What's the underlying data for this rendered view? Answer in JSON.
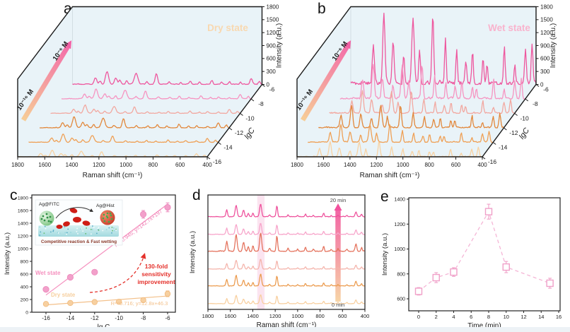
{
  "panels": {
    "a": {
      "letter": "a"
    },
    "b": {
      "letter": "b"
    },
    "c": {
      "letter": "c"
    },
    "d": {
      "letter": "d"
    },
    "e": {
      "letter": "e"
    }
  },
  "raman_peak_sets": {
    "dry": [
      [
        1630,
        0.5,
        14
      ],
      [
        1595,
        0.25,
        10
      ],
      [
        1545,
        1.0,
        16
      ],
      [
        1480,
        0.5,
        14
      ],
      [
        1450,
        0.3,
        10
      ],
      [
        1400,
        0.3,
        10
      ],
      [
        1330,
        0.85,
        18
      ],
      [
        1250,
        0.2,
        12
      ],
      [
        1180,
        0.8,
        13
      ],
      [
        1085,
        0.2,
        10
      ],
      [
        1000,
        0.15,
        9
      ],
      [
        930,
        0.25,
        10
      ],
      [
        860,
        0.15,
        9
      ],
      [
        770,
        0.3,
        10
      ],
      [
        700,
        0.15,
        9
      ],
      [
        640,
        0.2,
        9
      ],
      [
        560,
        0.15,
        9
      ],
      [
        480,
        0.45,
        12
      ],
      [
        420,
        0.25,
        9
      ]
    ],
    "wet": [
      [
        1630,
        0.55,
        11
      ],
      [
        1550,
        1.0,
        12
      ],
      [
        1480,
        0.6,
        11
      ],
      [
        1400,
        0.4,
        9
      ],
      [
        1330,
        0.95,
        13
      ],
      [
        1280,
        0.5,
        9
      ],
      [
        1180,
        1.0,
        10
      ],
      [
        1085,
        0.65,
        9
      ],
      [
        1000,
        0.5,
        8
      ],
      [
        930,
        0.35,
        9
      ],
      [
        880,
        0.45,
        8
      ],
      [
        800,
        0.35,
        8
      ],
      [
        770,
        0.3,
        8
      ],
      [
        640,
        0.55,
        8
      ],
      [
        560,
        0.25,
        8
      ],
      [
        480,
        0.5,
        9
      ],
      [
        430,
        0.6,
        9
      ]
    ],
    "kinetic": [
      [
        1632,
        0.55,
        10
      ],
      [
        1548,
        0.9,
        12
      ],
      [
        1482,
        0.5,
        11
      ],
      [
        1440,
        0.25,
        9
      ],
      [
        1398,
        0.3,
        8
      ],
      [
        1330,
        1.0,
        12
      ],
      [
        1250,
        0.15,
        9
      ],
      [
        1185,
        0.85,
        9
      ],
      [
        1085,
        0.15,
        8
      ],
      [
        1000,
        0.12,
        8
      ],
      [
        930,
        0.22,
        8
      ],
      [
        860,
        0.12,
        8
      ],
      [
        768,
        0.28,
        8
      ],
      [
        700,
        0.1,
        8
      ],
      [
        640,
        0.15,
        7
      ],
      [
        560,
        0.12,
        8
      ],
      [
        480,
        0.4,
        10
      ],
      [
        430,
        0.2,
        8
      ]
    ]
  },
  "chart_data": [
    {
      "id": "a",
      "type": "line",
      "variant": "3d-waterfall-raman",
      "title": "Dry state",
      "title_color": "#f8d8b0",
      "xlabel": "Raman shift (cm⁻¹)",
      "x_range": [
        1800,
        400
      ],
      "x_ticks": [
        1800,
        1600,
        1400,
        1200,
        1000,
        800,
        600,
        400
      ],
      "ylabel": "Intensity (a.u.)",
      "y_range": [
        0,
        1800
      ],
      "y_ticks": [
        0,
        300,
        600,
        900,
        1200,
        1500,
        1800
      ],
      "zlabel": "lgC",
      "z_ticks": [
        -16,
        -14,
        -12,
        -10,
        -8,
        -6
      ],
      "conc_arrow": {
        "from": "10⁻¹⁶ M",
        "to": "10⁻⁶ M"
      },
      "peak_set": "dry",
      "series": [
        {
          "lgC": -16,
          "color": "#f8d2a2",
          "peak_intensity": 150
        },
        {
          "lgC": -14,
          "color": "#efa055",
          "peak_intensity": 190
        },
        {
          "lgC": -12,
          "color": "#e2883c",
          "peak_intensity": 260
        },
        {
          "lgC": -10,
          "color": "#f2a8a0",
          "peak_intensity": 190
        },
        {
          "lgC": -8,
          "color": "#f694c1",
          "peak_intensity": 230
        },
        {
          "lgC": -6,
          "color": "#ee579e",
          "peak_intensity": 300
        }
      ]
    },
    {
      "id": "b",
      "type": "line",
      "variant": "3d-waterfall-raman",
      "title": "Wet state",
      "title_color": "#f9b3cd",
      "xlabel": "Raman shift (cm⁻¹)",
      "x_range": [
        1800,
        400
      ],
      "x_ticks": [
        1800,
        1600,
        1400,
        1200,
        1000,
        800,
        600,
        400
      ],
      "ylabel": "Intensity (a.u.)",
      "y_range": [
        0,
        1800
      ],
      "y_ticks": [
        0,
        300,
        600,
        900,
        1200,
        1500,
        1800
      ],
      "zlabel": "lgC",
      "z_ticks": [
        -16,
        -14,
        -12,
        -10,
        -8,
        -6
      ],
      "conc_arrow": {
        "from": "10⁻¹⁶ M",
        "to": "10⁻⁶ M"
      },
      "peak_set": "wet",
      "series": [
        {
          "lgC": -16,
          "color": "#f8d2a2",
          "peak_intensity": 350
        },
        {
          "lgC": -14,
          "color": "#efa055",
          "peak_intensity": 420
        },
        {
          "lgC": -12,
          "color": "#e2883c",
          "peak_intensity": 520
        },
        {
          "lgC": -10,
          "color": "#f2a8a0",
          "peak_intensity": 520
        },
        {
          "lgC": -8,
          "color": "#f694c1",
          "peak_intensity": 800
        },
        {
          "lgC": -6,
          "color": "#ee579e",
          "peak_intensity": 1600
        }
      ]
    },
    {
      "id": "c",
      "type": "scatter",
      "xlabel": "lg C",
      "ylabel": "Intensity (a.u.)",
      "x_ticks": [
        -16,
        -14,
        -12,
        -10,
        -8,
        -6
      ],
      "y_range": [
        0,
        1800
      ],
      "y_tick_step": 200,
      "series": [
        {
          "name": "Wet state",
          "label_color": "#f590be",
          "marker_color": "#f2a0ca",
          "x": [
            -16,
            -14,
            -12,
            -10,
            -8,
            -6
          ],
          "y": [
            360,
            550,
            630,
            1230,
            1540,
            1650
          ],
          "err": [
            0,
            0,
            0,
            60,
            60,
            70
          ],
          "fit_label": "R²=0.945;  y=142.7x+197",
          "fit_color": "#f07eb4",
          "fit_line_y_ends": [
            270,
            1700
          ]
        },
        {
          "name": "Dry state",
          "label_color": "#f6cf9e",
          "marker_color": "#f7d0a0",
          "x": [
            -16,
            -14,
            -12,
            -10,
            -8,
            -6
          ],
          "y": [
            130,
            145,
            160,
            165,
            190,
            290
          ],
          "err": [
            0,
            0,
            0,
            0,
            0,
            45
          ],
          "fit_label": "R²=0.716;  y=12.8x+46.3",
          "fit_color": "#f3c08a",
          "fit_line_y_ends": [
            115,
            255
          ]
        }
      ],
      "annotation": {
        "lines": [
          "130-fold",
          "sensitivity",
          "improvement"
        ],
        "color": "#e4312b"
      },
      "inset": {
        "left_label": "Ag@FITC",
        "right_label": "Ag@Hist",
        "caption": "Competitive reaction & Fast wetting",
        "caption_color": "#8a3a2b"
      }
    },
    {
      "id": "d",
      "type": "line",
      "variant": "stacked-spectra",
      "xlabel": "Raman shift (cm⁻¹)",
      "ylabel": "Intensity (a.u.)",
      "x_range": [
        1800,
        400
      ],
      "x_ticks": [
        1800,
        1600,
        1400,
        1200,
        1000,
        800,
        600,
        400
      ],
      "time_start": "0 min",
      "time_end": "20 min",
      "highlight_band_cm": [
        1360,
        1295
      ],
      "highlight_band_color": "#f7cde4",
      "peak_set": "kinetic",
      "series": [
        {
          "label": "0 min",
          "color": "#f8cf9e",
          "rel_amplitude": 13
        },
        {
          "label": "",
          "color": "#eb9a4c",
          "rel_amplitude": 17
        },
        {
          "label": "",
          "color": "#f4b3aa",
          "rel_amplitude": 14
        },
        {
          "label": "",
          "color": "#e4705a",
          "rel_amplitude": 26
        },
        {
          "label": "",
          "color": "#f7a3c9",
          "rel_amplitude": 16
        },
        {
          "label": "20 min",
          "color": "#ee4f9b",
          "rel_amplitude": 18
        }
      ]
    },
    {
      "id": "e",
      "type": "scatter",
      "xlabel": "Time (min)",
      "ylabel": "Intensity (a.u.)",
      "x_ticks": [
        0,
        2,
        4,
        6,
        8,
        10,
        12,
        14,
        16
      ],
      "y_ticks": [
        600,
        800,
        1000,
        1200,
        1400
      ],
      "x": [
        0,
        2,
        4,
        8,
        10,
        15
      ],
      "y": [
        660,
        770,
        815,
        1300,
        855,
        725
      ],
      "err": [
        30,
        40,
        35,
        60,
        45,
        40
      ],
      "marker": "open-square",
      "line_style": "dashed",
      "color": "#f0a0c8"
    }
  ]
}
